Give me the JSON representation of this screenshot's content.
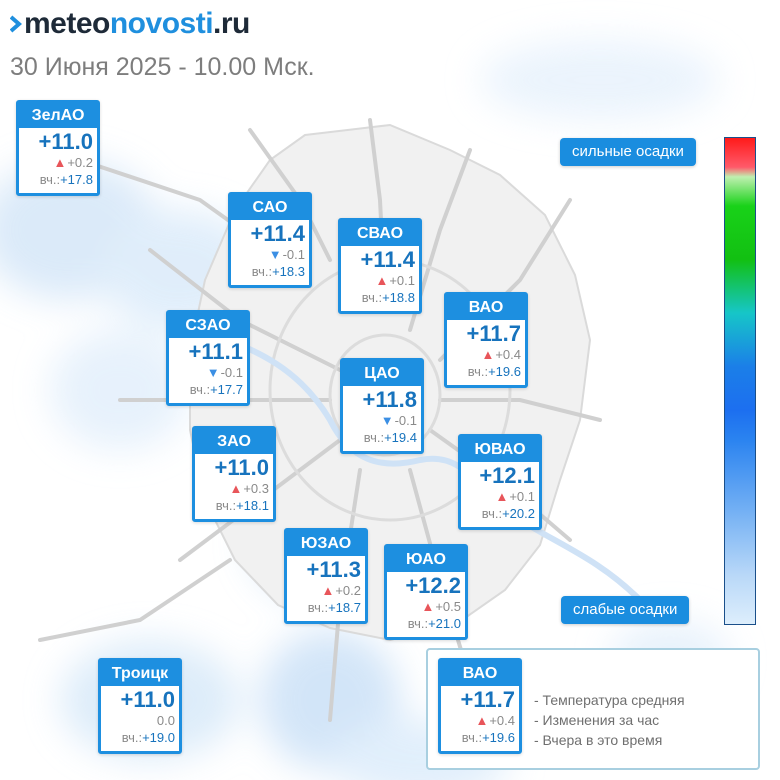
{
  "header": {
    "logo_dark": "meteo",
    "logo_blue": "novosti",
    "logo_suffix": ".ru",
    "date": "30 Июня 2025 - 10.00 Мск."
  },
  "districts": [
    {
      "id": "zelao",
      "name": "ЗелАО",
      "temp": "+11.0",
      "trend": "up",
      "change": "+0.2",
      "yest_label": "вч.:",
      "yest": "+17.8"
    },
    {
      "id": "sao",
      "name": "САО",
      "temp": "+11.4",
      "trend": "down",
      "change": "-0.1",
      "yest_label": "вч.:",
      "yest": "+18.3"
    },
    {
      "id": "svao",
      "name": "СВАО",
      "temp": "+11.4",
      "trend": "up",
      "change": "+0.1",
      "yest_label": "вч.:",
      "yest": "+18.8"
    },
    {
      "id": "vao",
      "name": "ВАО",
      "temp": "+11.7",
      "trend": "up",
      "change": "+0.4",
      "yest_label": "вч.:",
      "yest": "+19.6"
    },
    {
      "id": "szao",
      "name": "СЗАО",
      "temp": "+11.1",
      "trend": "down",
      "change": "-0.1",
      "yest_label": "вч.:",
      "yest": "+17.7"
    },
    {
      "id": "cao",
      "name": "ЦАО",
      "temp": "+11.8",
      "trend": "down",
      "change": "-0.1",
      "yest_label": "вч.:",
      "yest": "+19.4"
    },
    {
      "id": "zao",
      "name": "ЗАО",
      "temp": "+11.0",
      "trend": "up",
      "change": "+0.3",
      "yest_label": "вч.:",
      "yest": "+18.1"
    },
    {
      "id": "yuvao",
      "name": "ЮВАО",
      "temp": "+12.1",
      "trend": "up",
      "change": "+0.1",
      "yest_label": "вч.:",
      "yest": "+20.2"
    },
    {
      "id": "yuzao",
      "name": "ЮЗАО",
      "temp": "+11.3",
      "trend": "up",
      "change": "+0.2",
      "yest_label": "вч.:",
      "yest": "+18.7"
    },
    {
      "id": "yuao",
      "name": "ЮАО",
      "temp": "+12.2",
      "trend": "up",
      "change": "+0.5",
      "yest_label": "вч.:",
      "yest": "+21.0"
    },
    {
      "id": "troitsk",
      "name": "Троицк",
      "temp": "+11.0",
      "trend": "none",
      "change": "0.0",
      "yest_label": "вч.:",
      "yest": "+19.0"
    }
  ],
  "scale": {
    "top_label": "сильные осадки",
    "bottom_label": "слабые осадки"
  },
  "legend": {
    "sample": {
      "name": "ВАО",
      "temp": "+11.7",
      "trend": "up",
      "change": "+0.4",
      "yest_label": "вч.:",
      "yest": "+19.6"
    },
    "lines": [
      "- Температура средняя",
      "- Изменения за час",
      "- Вчера в это время"
    ]
  },
  "colors": {
    "accent": "#1d8fe0",
    "temp_text": "#1773bd",
    "trend_up": "#e8555a",
    "trend_down": "#3b8fe4",
    "precip_light": "#cfe4f8"
  }
}
